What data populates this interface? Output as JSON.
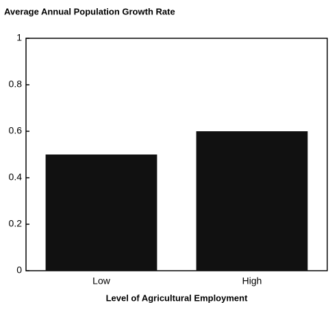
{
  "chart_data": {
    "type": "bar",
    "title": "Average Annual Population Growth Rate",
    "x_label": "Level of Agricultural Employment",
    "categories": [
      "Low",
      "High"
    ],
    "values": [
      0.5,
      0.6
    ],
    "color": "#111111",
    "ylim": [
      0,
      1
    ],
    "yticks": [
      0,
      0.2,
      0.4,
      0.6,
      0.8,
      1
    ],
    "grid": false
  }
}
